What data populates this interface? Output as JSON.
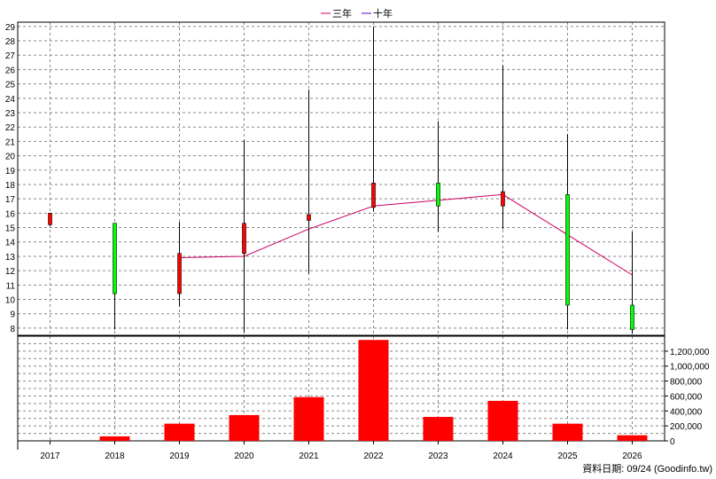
{
  "legend": [
    {
      "label": "三年",
      "color": "#cc0066"
    },
    {
      "label": "十年",
      "color": "#6600cc"
    }
  ],
  "footer": "資料日期: 09/24  (Goodinfo.tw)",
  "colors": {
    "up_candle": "#ff0000",
    "down_candle": "#00ff00",
    "volume": "#ff0000",
    "ma3": "#cc0066",
    "grid": "#888888"
  },
  "chart_data": {
    "type": "candlestick+bar",
    "grid": true,
    "legend_position": "top",
    "categories": [
      "2017",
      "2018",
      "2019",
      "2020",
      "2021",
      "2022",
      "2023",
      "2024",
      "2025",
      "2026"
    ],
    "price_axis": {
      "ylim": [
        7.5,
        29.3
      ],
      "ticks": [
        8,
        9,
        10,
        11,
        12,
        13,
        14,
        15,
        16,
        17,
        18,
        19,
        20,
        21,
        22,
        23,
        24,
        25,
        26,
        27,
        28,
        29
      ]
    },
    "volume_axis": {
      "ylim": [
        0,
        1400000
      ],
      "ticks": [
        0,
        200000,
        400000,
        600000,
        800000,
        1000000,
        1200000
      ],
      "tick_labels": [
        "0",
        "200,000",
        "400,000",
        "600,000",
        "800,000",
        "1,000,000",
        "1,200,000"
      ]
    },
    "candles": [
      {
        "year": "2017",
        "open": 15.2,
        "close": 16.0,
        "high": 16.0,
        "low": 15.1
      },
      {
        "year": "2018",
        "open": 15.3,
        "close": 10.4,
        "high": 15.3,
        "low": 7.9
      },
      {
        "year": "2019",
        "open": 10.4,
        "close": 13.2,
        "high": 15.4,
        "low": 9.5
      },
      {
        "year": "2020",
        "open": 13.2,
        "close": 15.3,
        "high": 21.1,
        "low": 7.7
      },
      {
        "year": "2021",
        "open": 15.5,
        "close": 15.9,
        "high": 24.6,
        "low": 11.8
      },
      {
        "year": "2022",
        "open": 16.4,
        "close": 18.1,
        "high": 29.0,
        "low": 16.1
      },
      {
        "year": "2023",
        "open": 18.1,
        "close": 16.5,
        "high": 22.4,
        "low": 14.7
      },
      {
        "year": "2024",
        "open": 16.5,
        "close": 17.5,
        "high": 26.3,
        "low": 14.9
      },
      {
        "year": "2025",
        "open": 17.3,
        "close": 9.6,
        "high": 21.5,
        "low": 7.9
      },
      {
        "year": "2026",
        "open": 9.6,
        "close": 7.9,
        "high": 14.7,
        "low": 7.6
      }
    ],
    "series": [
      {
        "name": "三年",
        "type": "line",
        "x": [
          "2019",
          "2020",
          "2021",
          "2022",
          "2023",
          "2024",
          "2026"
        ],
        "values": [
          12.9,
          13.0,
          14.9,
          16.5,
          16.9,
          17.3,
          11.7
        ]
      }
    ],
    "volume": [
      {
        "year": "2017",
        "value": 0
      },
      {
        "year": "2018",
        "value": 60000
      },
      {
        "year": "2019",
        "value": 230000
      },
      {
        "year": "2020",
        "value": 345000
      },
      {
        "year": "2021",
        "value": 585000
      },
      {
        "year": "2022",
        "value": 1350000
      },
      {
        "year": "2023",
        "value": 320000
      },
      {
        "year": "2024",
        "value": 535000
      },
      {
        "year": "2025",
        "value": 230000
      },
      {
        "year": "2026",
        "value": 75000
      }
    ]
  }
}
